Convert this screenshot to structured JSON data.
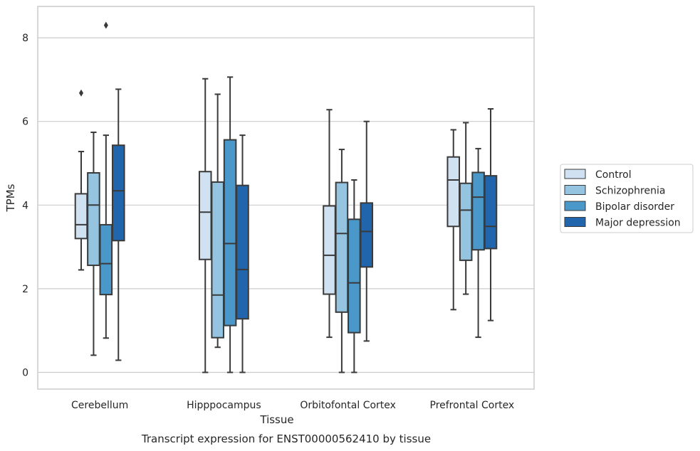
{
  "chart_data": {
    "type": "box",
    "xlabel": "Tissue",
    "ylabel": "TPMs",
    "caption": "Transcript expression for ENST00000562410 by tissue",
    "ylim": [
      -0.4,
      8.75
    ],
    "yticks": [
      0,
      2,
      4,
      6,
      8
    ],
    "grid": "horizontal",
    "legend_position": "right",
    "categories": [
      "Cerebellum",
      "Hipppocampus",
      "Orbitofontal Cortex",
      "Prefrontal Cortex"
    ],
    "series": [
      {
        "name": "Control",
        "color": "#d0e1f2",
        "boxes": [
          {
            "min": 2.45,
            "q1": 3.2,
            "median": 3.53,
            "q3": 4.27,
            "max": 5.28,
            "outliers": [
              6.68
            ]
          },
          {
            "min": 0.0,
            "q1": 2.7,
            "median": 3.83,
            "q3": 4.8,
            "max": 7.02,
            "outliers": []
          },
          {
            "min": 0.84,
            "q1": 1.87,
            "median": 2.8,
            "q3": 3.98,
            "max": 6.28,
            "outliers": []
          },
          {
            "min": 1.5,
            "q1": 3.49,
            "median": 4.6,
            "q3": 5.15,
            "max": 5.8,
            "outliers": []
          }
        ]
      },
      {
        "name": "Schizophrenia",
        "color": "#94c4df",
        "boxes": [
          {
            "min": 0.41,
            "q1": 2.56,
            "median": 4.0,
            "q3": 4.77,
            "max": 5.74,
            "outliers": []
          },
          {
            "min": 0.6,
            "q1": 0.83,
            "median": 1.85,
            "q3": 4.55,
            "max": 6.65,
            "outliers": []
          },
          {
            "min": 0.0,
            "q1": 1.44,
            "median": 3.32,
            "q3": 4.54,
            "max": 5.33,
            "outliers": []
          },
          {
            "min": 1.87,
            "q1": 2.68,
            "median": 3.88,
            "q3": 4.52,
            "max": 5.97,
            "outliers": []
          }
        ]
      },
      {
        "name": "Bipolar disorder",
        "color": "#4a98c9",
        "boxes": [
          {
            "min": 0.82,
            "q1": 1.86,
            "median": 2.6,
            "q3": 3.53,
            "max": 5.67,
            "outliers": [
              8.3
            ]
          },
          {
            "min": 0.0,
            "q1": 1.12,
            "median": 3.08,
            "q3": 5.56,
            "max": 7.06,
            "outliers": []
          },
          {
            "min": 0.0,
            "q1": 0.95,
            "median": 2.14,
            "q3": 3.66,
            "max": 4.6,
            "outliers": []
          },
          {
            "min": 0.84,
            "q1": 2.93,
            "median": 4.19,
            "q3": 4.78,
            "max": 5.35,
            "outliers": []
          }
        ]
      },
      {
        "name": "Major depression",
        "color": "#2166ac",
        "boxes": [
          {
            "min": 0.29,
            "q1": 3.15,
            "median": 4.34,
            "q3": 5.43,
            "max": 6.77,
            "outliers": []
          },
          {
            "min": 0.0,
            "q1": 1.28,
            "median": 2.46,
            "q3": 4.47,
            "max": 5.67,
            "outliers": []
          },
          {
            "min": 0.75,
            "q1": 2.52,
            "median": 3.37,
            "q3": 4.05,
            "max": 6.0,
            "outliers": []
          },
          {
            "min": 1.24,
            "q1": 2.96,
            "median": 3.49,
            "q3": 4.7,
            "max": 6.3,
            "outliers": []
          }
        ]
      }
    ]
  }
}
